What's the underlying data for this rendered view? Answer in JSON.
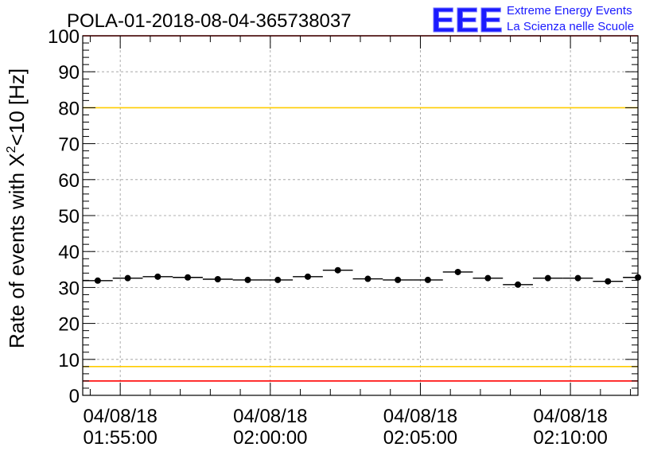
{
  "title": "POLA-01-2018-08-04-365738037",
  "logo": {
    "mark": "EEE",
    "line1": "Extreme Energy Events",
    "line2": "La Scienza nelle Scuole",
    "color": "#1a1aff"
  },
  "colors": {
    "data": "#000000",
    "grid": "#999999",
    "red_limit": "#ff0000",
    "yellow_limit": "#ffcc00"
  },
  "chart_data": {
    "type": "scatter",
    "title": "POLA-01-2018-08-04-365738037",
    "xlabel": "",
    "ylabel_prefix": "Rate of events with ",
    "ylabel_chi": "X",
    "ylabel_sup": "2",
    "ylabel_suffix": "<10 [Hz]",
    "ylim": [
      0,
      100
    ],
    "xlim": [
      "2018-08-04 01:53:45",
      "2018-08-04 02:12:15"
    ],
    "y_major_ticks": [
      0,
      10,
      20,
      30,
      40,
      50,
      60,
      70,
      80,
      90,
      100
    ],
    "x_major_ticks": [
      {
        "time": "2018-08-04 01:55:00",
        "date_label": "04/08/18",
        "time_label": "01:55:00"
      },
      {
        "time": "2018-08-04 02:00:00",
        "date_label": "04/08/18",
        "time_label": "02:00:00"
      },
      {
        "time": "2018-08-04 02:05:00",
        "date_label": "04/08/18",
        "time_label": "02:05:00"
      },
      {
        "time": "2018-08-04 02:10:00",
        "date_label": "04/08/18",
        "time_label": "02:10:00"
      }
    ],
    "grid": true,
    "horizontal_lines": [
      {
        "y": 100,
        "color": "#ff0000"
      },
      {
        "y": 80,
        "color": "#ffcc00"
      },
      {
        "y": 8,
        "color": "#ffcc00"
      },
      {
        "y": 4,
        "color": "#ff0000"
      }
    ],
    "bin_width_s": 60,
    "points": [
      {
        "x": "2018-08-04 01:54:15",
        "y": 31.9
      },
      {
        "x": "2018-08-04 01:55:15",
        "y": 32.6
      },
      {
        "x": "2018-08-04 01:56:15",
        "y": 33.0
      },
      {
        "x": "2018-08-04 01:57:15",
        "y": 32.8
      },
      {
        "x": "2018-08-04 01:58:15",
        "y": 32.3
      },
      {
        "x": "2018-08-04 01:59:15",
        "y": 32.1
      },
      {
        "x": "2018-08-04 02:00:15",
        "y": 32.1
      },
      {
        "x": "2018-08-04 02:01:15",
        "y": 33.0
      },
      {
        "x": "2018-08-04 02:02:15",
        "y": 34.8
      },
      {
        "x": "2018-08-04 02:03:15",
        "y": 32.4
      },
      {
        "x": "2018-08-04 02:04:15",
        "y": 32.1
      },
      {
        "x": "2018-08-04 02:05:15",
        "y": 32.1
      },
      {
        "x": "2018-08-04 02:06:15",
        "y": 34.3
      },
      {
        "x": "2018-08-04 02:07:15",
        "y": 32.6
      },
      {
        "x": "2018-08-04 02:08:15",
        "y": 30.8
      },
      {
        "x": "2018-08-04 02:09:15",
        "y": 32.6
      },
      {
        "x": "2018-08-04 02:10:15",
        "y": 32.6
      },
      {
        "x": "2018-08-04 02:11:15",
        "y": 31.7
      },
      {
        "x": "2018-08-04 02:12:15",
        "y": 32.8
      }
    ]
  }
}
